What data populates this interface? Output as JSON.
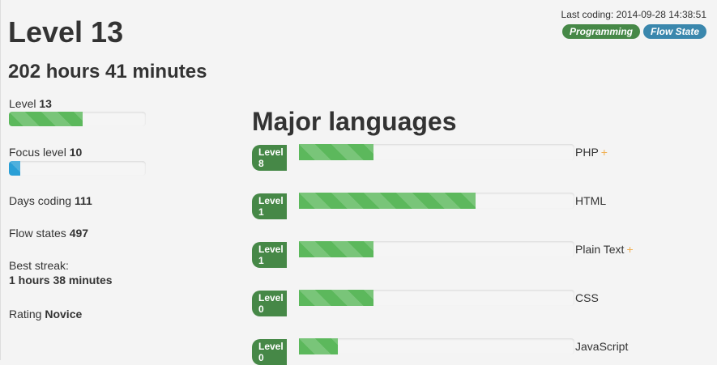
{
  "header": {
    "level_title": "Level 13",
    "hours": "202 hours 41 minutes",
    "last_coding": "Last coding: 2014-09-28 14:38:51",
    "badges": [
      {
        "label": "Programming",
        "color": "#468847"
      },
      {
        "label": "Flow State",
        "color": "#3a87ad"
      }
    ]
  },
  "stats": {
    "level": {
      "label": "Level",
      "value": "13",
      "progress": 0.54
    },
    "focus": {
      "label": "Focus level",
      "value": "10",
      "progress": 0.08
    },
    "days": {
      "label": "Days coding",
      "value": "111"
    },
    "flow": {
      "label": "Flow states",
      "value": "497"
    },
    "streak": {
      "label": "Best streak:",
      "value": "1 hours 38 minutes"
    },
    "rating": {
      "label": "Rating",
      "value": "Novice"
    }
  },
  "languages": {
    "title": "Major languages",
    "items": [
      {
        "level": "Level 8",
        "name": "PHP",
        "plus": "+",
        "progress": 0.27
      },
      {
        "level": "Level 1",
        "name": "HTML",
        "plus": "",
        "progress": 0.64
      },
      {
        "level": "Level 1",
        "name": "Plain Text",
        "plus": "+",
        "progress": 0.27
      },
      {
        "level": "Level 0",
        "name": "CSS",
        "plus": "",
        "progress": 0.27
      },
      {
        "level": "Level 0",
        "name": "JavaScript",
        "plus": "",
        "progress": 0.14
      }
    ]
  },
  "colors": {
    "green_progress": "#5cb85c",
    "blue_progress": "#2a9fd6",
    "badge_green": "#468847",
    "badge_blue": "#3a87ad",
    "plus_orange": "#f0ad4e"
  }
}
